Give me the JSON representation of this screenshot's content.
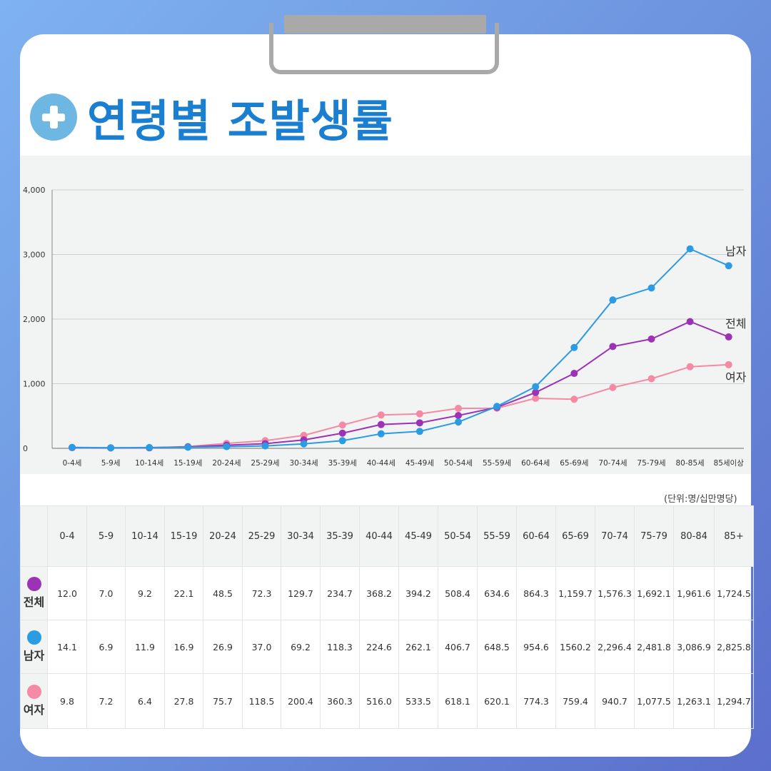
{
  "title": "연령별 조발생률",
  "unit_note": "(단위:명/십만명당)",
  "colors": {
    "total": "#9b33b4",
    "male": "#2b9be3",
    "female": "#f58aa4",
    "title": "#1a7fd0"
  },
  "chart_data": {
    "type": "line",
    "categories": [
      "0-4세",
      "5-9세",
      "10-14세",
      "15-19세",
      "20-24세",
      "25-29세",
      "30-34세",
      "35-39세",
      "40-44세",
      "45-49세",
      "50-54세",
      "55-59세",
      "60-64세",
      "65-69세",
      "70-74세",
      "75-79세",
      "80-85세",
      "85세이상"
    ],
    "series": [
      {
        "name": "남자",
        "values": [
          14.1,
          6.9,
          11.9,
          16.9,
          26.9,
          37.0,
          69.2,
          118.3,
          224.6,
          262.1,
          406.7,
          648.5,
          954.6,
          1560.2,
          2296.4,
          2481.8,
          3086.9,
          2825.8
        ]
      },
      {
        "name": "전체",
        "values": [
          12.0,
          7.0,
          9.2,
          22.1,
          48.5,
          72.3,
          129.7,
          234.7,
          368.2,
          394.2,
          508.4,
          634.6,
          864.3,
          1159.7,
          1576.3,
          1692.1,
          1961.6,
          1724.5
        ]
      },
      {
        "name": "여자",
        "values": [
          9.8,
          7.2,
          6.4,
          27.8,
          75.7,
          118.5,
          200.4,
          360.3,
          516.0,
          533.5,
          618.1,
          620.1,
          774.3,
          759.4,
          940.7,
          1077.5,
          1263.1,
          1294.7
        ]
      }
    ],
    "yticks": [
      "0",
      "1,000",
      "2,000",
      "3,000",
      "4,000"
    ],
    "ylim": [
      0,
      4000
    ],
    "grid": true,
    "legend": "line-end labels"
  },
  "table": {
    "headers": [
      "0-4",
      "5-9",
      "10-14",
      "15-19",
      "20-24",
      "25-29",
      "30-34",
      "35-39",
      "40-44",
      "45-49",
      "50-54",
      "55-59",
      "60-64",
      "65-69",
      "70-74",
      "75-79",
      "80-84",
      "85+"
    ],
    "rows": [
      {
        "label": "전체",
        "values": [
          "12.0",
          "7.0",
          "9.2",
          "22.1",
          "48.5",
          "72.3",
          "129.7",
          "234.7",
          "368.2",
          "394.2",
          "508.4",
          "634.6",
          "864.3",
          "1,159.7",
          "1,576.3",
          "1,692.1",
          "1,961.6",
          "1,724.5"
        ]
      },
      {
        "label": "남자",
        "values": [
          "14.1",
          "6.9",
          "11.9",
          "16.9",
          "26.9",
          "37.0",
          "69.2",
          "118.3",
          "224.6",
          "262.1",
          "406.7",
          "648.5",
          "954.6",
          "1560.2",
          "2,296.4",
          "2,481.8",
          "3,086.9",
          "2,825.8"
        ]
      },
      {
        "label": "여자",
        "values": [
          "9.8",
          "7.2",
          "6.4",
          "27.8",
          "75.7",
          "118.5",
          "200.4",
          "360.3",
          "516.0",
          "533.5",
          "618.1",
          "620.1",
          "774.3",
          "759.4",
          "940.7",
          "1,077.5",
          "1,263.1",
          "1,294.7"
        ]
      }
    ]
  }
}
